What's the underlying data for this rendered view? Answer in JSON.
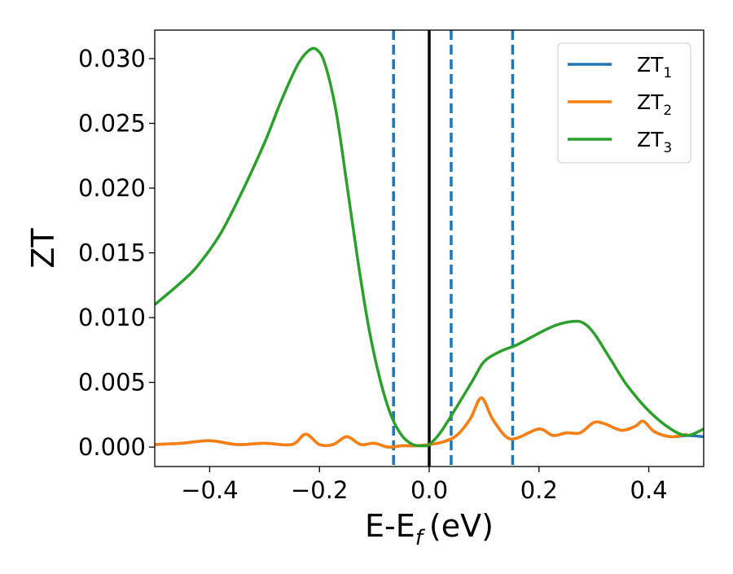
{
  "chart_data": {
    "type": "line",
    "title": "",
    "xlabel": "E-E",
    "xlabel_sub": "f",
    "xlabel_unit": "(eV)",
    "ylabel": "ZT",
    "xlim": [
      -0.5,
      0.5
    ],
    "ylim": [
      -0.0015,
      0.0322
    ],
    "xticks": [
      -0.4,
      -0.2,
      0.0,
      0.2,
      0.4
    ],
    "xtick_labels": [
      "−0.4",
      "−0.2",
      "0.0",
      "0.2",
      "0.4"
    ],
    "yticks": [
      0.0,
      0.005,
      0.01,
      0.015,
      0.02,
      0.025,
      0.03
    ],
    "ytick_labels": [
      "0.000",
      "0.005",
      "0.010",
      "0.015",
      "0.020",
      "0.025",
      "0.030"
    ],
    "grid": false,
    "legend_position": "top-right",
    "colors": {
      "zt1": "#1f77b4",
      "zt2": "#ff7f0e",
      "zt3": "#2ca02c",
      "fermi": "#000000"
    },
    "vlines": [
      {
        "x": 0.0,
        "style": "solid",
        "color": "#000000"
      },
      {
        "x": -0.065,
        "style": "dashed",
        "color": "#1f77b4"
      },
      {
        "x": 0.04,
        "style": "dashed",
        "color": "#1f77b4"
      },
      {
        "x": 0.152,
        "style": "dashed",
        "color": "#1f77b4"
      }
    ],
    "series": [
      {
        "name": "ZT",
        "name_sub": "1",
        "color": "#1f77b4",
        "x": [
          -0.5,
          -0.45,
          -0.4,
          -0.35,
          -0.3,
          -0.25,
          -0.225,
          -0.2,
          -0.175,
          -0.15,
          -0.125,
          -0.1,
          -0.075,
          -0.05,
          -0.025,
          0.0,
          0.025,
          0.05,
          0.075,
          0.095,
          0.115,
          0.14,
          0.16,
          0.2,
          0.225,
          0.25,
          0.275,
          0.3,
          0.32,
          0.35,
          0.375,
          0.39,
          0.41,
          0.44,
          0.47,
          0.5
        ],
        "y": [
          0.0002,
          0.0003,
          0.0005,
          0.0002,
          0.0003,
          0.0002,
          0.001,
          0.0002,
          0.0002,
          0.0008,
          0.0002,
          0.0003,
          0.0,
          0.0001,
          0.0001,
          0.0002,
          0.0004,
          0.0009,
          0.0022,
          0.0038,
          0.0022,
          0.0008,
          0.0007,
          0.0014,
          0.0009,
          0.0011,
          0.0011,
          0.0019,
          0.0018,
          0.0013,
          0.0016,
          0.002,
          0.0012,
          0.0008,
          0.0009,
          0.0008
        ]
      },
      {
        "name": "ZT",
        "name_sub": "2",
        "color": "#ff7f0e",
        "x": [
          -0.5,
          -0.45,
          -0.4,
          -0.35,
          -0.3,
          -0.25,
          -0.225,
          -0.2,
          -0.175,
          -0.15,
          -0.125,
          -0.1,
          -0.075,
          -0.05,
          -0.025,
          0.0,
          0.025,
          0.05,
          0.075,
          0.095,
          0.115,
          0.14,
          0.16,
          0.2,
          0.225,
          0.25,
          0.275,
          0.3,
          0.32,
          0.35,
          0.375,
          0.39,
          0.41,
          0.44,
          0.47
        ],
        "y": [
          0.0002,
          0.0003,
          0.0005,
          0.0002,
          0.0003,
          0.0002,
          0.001,
          0.0002,
          0.0002,
          0.0008,
          0.0002,
          0.0003,
          0.0,
          0.0001,
          0.0001,
          0.0002,
          0.0004,
          0.0009,
          0.0022,
          0.0038,
          0.0022,
          0.0008,
          0.0007,
          0.0014,
          0.0009,
          0.0011,
          0.0011,
          0.0019,
          0.0018,
          0.0013,
          0.0016,
          0.002,
          0.0012,
          0.0008,
          0.001
        ]
      },
      {
        "name": "ZT",
        "name_sub": "3",
        "color": "#2ca02c",
        "x": [
          -0.5,
          -0.45,
          -0.42,
          -0.38,
          -0.34,
          -0.3,
          -0.27,
          -0.24,
          -0.22,
          -0.205,
          -0.19,
          -0.17,
          -0.15,
          -0.13,
          -0.11,
          -0.09,
          -0.07,
          -0.05,
          -0.03,
          -0.01,
          0.0,
          0.02,
          0.05,
          0.08,
          0.1,
          0.13,
          0.16,
          0.2,
          0.23,
          0.26,
          0.28,
          0.3,
          0.33,
          0.36,
          0.4,
          0.44,
          0.47,
          0.5
        ],
        "y": [
          0.011,
          0.0128,
          0.0141,
          0.0165,
          0.0198,
          0.0235,
          0.0267,
          0.0295,
          0.0306,
          0.0307,
          0.0296,
          0.026,
          0.0203,
          0.0144,
          0.0092,
          0.0053,
          0.0025,
          0.0009,
          0.0002,
          0.0001,
          0.0002,
          0.0011,
          0.0031,
          0.0052,
          0.0066,
          0.0074,
          0.0079,
          0.0088,
          0.0094,
          0.0097,
          0.0096,
          0.0088,
          0.0068,
          0.0048,
          0.0028,
          0.0014,
          0.0009,
          0.0014
        ]
      }
    ]
  }
}
